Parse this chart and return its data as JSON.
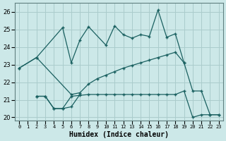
{
  "xlabel": "Humidex (Indice chaleur)",
  "background_color": "#cce8e8",
  "grid_color": "#aacccc",
  "line_color": "#1a6060",
  "ylim": [
    19.8,
    26.5
  ],
  "yticks": [
    20,
    21,
    22,
    23,
    24,
    25,
    26
  ],
  "xlim": [
    -0.5,
    23.5
  ],
  "line1_x": [
    0,
    2,
    5,
    6,
    7,
    8,
    10,
    11,
    12,
    13,
    14,
    15,
    16,
    17,
    18,
    19,
    20,
    21,
    22,
    23
  ],
  "line1_y": [
    22.8,
    23.4,
    25.1,
    23.1,
    24.4,
    25.15,
    24.1,
    25.2,
    24.7,
    24.5,
    24.7,
    24.6,
    26.1,
    24.55,
    24.75,
    23.1,
    21.5,
    21.5,
    20.15,
    20.15
  ],
  "line2_x": [
    0,
    2,
    6,
    7,
    8,
    9,
    10,
    11,
    12,
    13,
    14,
    15,
    16,
    17,
    18,
    19
  ],
  "line2_y": [
    22.8,
    23.4,
    21.3,
    21.4,
    21.9,
    22.2,
    22.4,
    22.6,
    22.8,
    22.95,
    23.1,
    23.25,
    23.4,
    23.55,
    23.7,
    23.1
  ],
  "line3_x": [
    2,
    3,
    4,
    5,
    6,
    7,
    8,
    9,
    10,
    11,
    12,
    13,
    14,
    15,
    16,
    17,
    18,
    19,
    20,
    21,
    22,
    23
  ],
  "line3_y": [
    21.2,
    21.2,
    20.5,
    20.5,
    21.2,
    21.25,
    21.3,
    21.3,
    21.3,
    21.3,
    21.3,
    21.3,
    21.3,
    21.3,
    21.3,
    21.3,
    21.3,
    21.5,
    20.0,
    20.15,
    20.15,
    20.15
  ],
  "line4_x": [
    2,
    3,
    4,
    5,
    6,
    7
  ],
  "line4_y": [
    21.2,
    21.2,
    20.5,
    20.5,
    20.6,
    21.3
  ]
}
